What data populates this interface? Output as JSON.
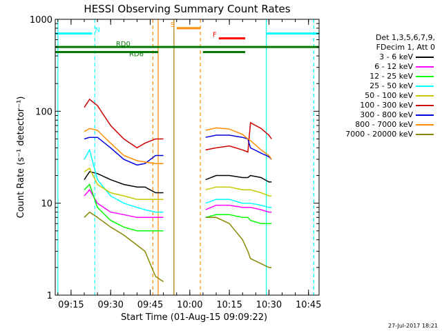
{
  "chart_data": {
    "type": "line",
    "title": "HESSI Observing Summary Count Rates",
    "xlabel": "Start Time (01-Aug-15 09:09:22)",
    "ylabel": "Count Rate (s⁻¹ detector⁻¹)",
    "y_scale": "log",
    "xlim": [
      "09:09",
      "10:49"
    ],
    "ylim": [
      1,
      1000
    ],
    "x_ticks": [
      "09:15",
      "09:30",
      "09:45",
      "10:00",
      "10:15",
      "10:30",
      "10:45"
    ],
    "y_ticks": [
      "1",
      "10",
      "100",
      "1000"
    ],
    "legend_header": [
      "Det 1,3,5,6,7,9,",
      "FDecim 1, Att 0"
    ],
    "legend_position": "right",
    "series": [
      {
        "name": "3 - 6 keV",
        "color": "#000000",
        "values": [
          [
            "09:20",
            18
          ],
          [
            "09:22",
            22
          ],
          [
            "09:25",
            21
          ],
          [
            "09:30",
            18
          ],
          [
            "09:35",
            16
          ],
          [
            "09:40",
            15
          ],
          [
            "09:43",
            15
          ],
          [
            "09:47",
            13
          ],
          [
            "09:50",
            13
          ],
          [
            "10:06",
            18
          ],
          [
            "10:10",
            20
          ],
          [
            "10:15",
            20
          ],
          [
            "10:20",
            19
          ],
          [
            "10:22",
            19
          ],
          [
            "10:23",
            20
          ],
          [
            "10:27",
            19
          ],
          [
            "10:30",
            17
          ],
          [
            "10:31",
            17
          ]
        ]
      },
      {
        "name": "6 - 12 keV",
        "color": "#ff00ff",
        "values": [
          [
            "09:20",
            12
          ],
          [
            "09:22",
            14
          ],
          [
            "09:25",
            10
          ],
          [
            "09:30",
            8
          ],
          [
            "09:35",
            7.5
          ],
          [
            "09:40",
            7
          ],
          [
            "09:43",
            7
          ],
          [
            "09:47",
            7
          ],
          [
            "09:50",
            7
          ],
          [
            "10:06",
            8.5
          ],
          [
            "10:10",
            9.5
          ],
          [
            "10:15",
            9.5
          ],
          [
            "10:20",
            9
          ],
          [
            "10:22",
            9
          ],
          [
            "10:23",
            9
          ],
          [
            "10:27",
            8.5
          ],
          [
            "10:30",
            8
          ],
          [
            "10:31",
            8
          ]
        ]
      },
      {
        "name": "12 - 25 keV",
        "color": "#00ff00",
        "values": [
          [
            "09:20",
            14
          ],
          [
            "09:22",
            16
          ],
          [
            "09:25",
            9
          ],
          [
            "09:30",
            6.5
          ],
          [
            "09:35",
            5.5
          ],
          [
            "09:40",
            5
          ],
          [
            "09:43",
            5
          ],
          [
            "09:47",
            5
          ],
          [
            "09:50",
            5
          ],
          [
            "10:06",
            7
          ],
          [
            "10:10",
            7.5
          ],
          [
            "10:15",
            7.5
          ],
          [
            "10:20",
            7
          ],
          [
            "10:22",
            7
          ],
          [
            "10:23",
            6.5
          ],
          [
            "10:27",
            6
          ],
          [
            "10:30",
            6
          ],
          [
            "10:31",
            6
          ]
        ]
      },
      {
        "name": "25 - 50 keV",
        "color": "#00ffff",
        "values": [
          [
            "09:20",
            30
          ],
          [
            "09:22",
            38
          ],
          [
            "09:25",
            18
          ],
          [
            "09:30",
            12
          ],
          [
            "09:35",
            10
          ],
          [
            "09:40",
            9
          ],
          [
            "09:43",
            8.5
          ],
          [
            "09:47",
            8
          ],
          [
            "09:50",
            8
          ],
          [
            "10:06",
            10
          ],
          [
            "10:10",
            11
          ],
          [
            "10:15",
            11
          ],
          [
            "10:20",
            10
          ],
          [
            "10:22",
            10
          ],
          [
            "10:23",
            10
          ],
          [
            "10:27",
            9.5
          ],
          [
            "10:30",
            9
          ],
          [
            "10:31",
            9
          ]
        ]
      },
      {
        "name": "50 - 100 keV",
        "color": "#c8c800",
        "values": [
          [
            "09:20",
            22
          ],
          [
            "09:22",
            24
          ],
          [
            "09:25",
            16
          ],
          [
            "09:30",
            13
          ],
          [
            "09:35",
            12
          ],
          [
            "09:40",
            11
          ],
          [
            "09:43",
            11
          ],
          [
            "09:47",
            11
          ],
          [
            "09:50",
            11
          ],
          [
            "10:06",
            14
          ],
          [
            "10:10",
            15
          ],
          [
            "10:15",
            15
          ],
          [
            "10:20",
            14
          ],
          [
            "10:22",
            14
          ],
          [
            "10:23",
            14
          ],
          [
            "10:27",
            13
          ],
          [
            "10:30",
            12
          ],
          [
            "10:31",
            12
          ]
        ]
      },
      {
        "name": "100 - 300 keV",
        "color": "#cc0000",
        "values": [
          [
            "09:20",
            110
          ],
          [
            "09:22",
            135
          ],
          [
            "09:25",
            115
          ],
          [
            "09:30",
            70
          ],
          [
            "09:35",
            50
          ],
          [
            "09:40",
            40
          ],
          [
            "09:43",
            45
          ],
          [
            "09:47",
            50
          ],
          [
            "09:50",
            50
          ],
          [
            "10:06",
            38
          ],
          [
            "10:10",
            40
          ],
          [
            "10:15",
            42
          ],
          [
            "10:20",
            38
          ],
          [
            "10:22",
            36
          ],
          [
            "10:23",
            75
          ],
          [
            "10:27",
            65
          ],
          [
            "10:30",
            55
          ],
          [
            "10:31",
            50
          ]
        ]
      },
      {
        "name": "300 - 800 keV",
        "color": "#0000dd",
        "values": [
          [
            "09:20",
            50
          ],
          [
            "09:22",
            52
          ],
          [
            "09:25",
            52
          ],
          [
            "09:30",
            40
          ],
          [
            "09:35",
            30
          ],
          [
            "09:40",
            26
          ],
          [
            "09:43",
            27
          ],
          [
            "09:47",
            33
          ],
          [
            "09:50",
            33
          ],
          [
            "10:06",
            52
          ],
          [
            "10:10",
            55
          ],
          [
            "10:15",
            55
          ],
          [
            "10:20",
            52
          ],
          [
            "10:22",
            50
          ],
          [
            "10:23",
            40
          ],
          [
            "10:27",
            35
          ],
          [
            "10:30",
            32
          ],
          [
            "10:31",
            30
          ]
        ]
      },
      {
        "name": "800 - 7000 keV",
        "color": "#ff8c00",
        "values": [
          [
            "09:20",
            60
          ],
          [
            "09:22",
            65
          ],
          [
            "09:25",
            62
          ],
          [
            "09:30",
            45
          ],
          [
            "09:35",
            33
          ],
          [
            "09:40",
            29
          ],
          [
            "09:43",
            28
          ],
          [
            "09:47",
            27
          ],
          [
            "09:50",
            27
          ],
          [
            "10:06",
            62
          ],
          [
            "10:10",
            66
          ],
          [
            "10:15",
            64
          ],
          [
            "10:20",
            56
          ],
          [
            "10:22",
            50
          ],
          [
            "10:23",
            48
          ],
          [
            "10:27",
            38
          ],
          [
            "10:30",
            33
          ],
          [
            "10:31",
            30
          ]
        ]
      },
      {
        "name": "7000 - 20000 keV",
        "color": "#888800",
        "values": [
          [
            "09:20",
            7
          ],
          [
            "09:22",
            8
          ],
          [
            "09:25",
            7
          ],
          [
            "09:30",
            5.5
          ],
          [
            "09:35",
            4.5
          ],
          [
            "09:40",
            3.5
          ],
          [
            "09:43",
            3
          ],
          [
            "09:47",
            1.6
          ],
          [
            "09:50",
            1.4
          ],
          [
            "10:06",
            7
          ],
          [
            "10:10",
            7
          ],
          [
            "10:15",
            6
          ],
          [
            "10:20",
            4
          ],
          [
            "10:22",
            3
          ],
          [
            "10:23",
            2.5
          ],
          [
            "10:27",
            2.2
          ],
          [
            "10:30",
            2
          ],
          [
            "10:31",
            2
          ]
        ]
      }
    ],
    "flag_bars": [
      {
        "label": "N",
        "color": "#00ffff",
        "y": 700,
        "segments": [
          [
            "09:09",
            "09:23"
          ],
          [
            "10:29",
            "10:49"
          ]
        ]
      },
      {
        "label": "S",
        "color": "#ff8c00",
        "y": 800,
        "segments": [
          [
            "09:55",
            "10:04"
          ]
        ]
      },
      {
        "label": "F",
        "color": "#ff0000",
        "y": 620,
        "segments": [
          [
            "10:11",
            "10:21"
          ]
        ]
      },
      {
        "label": "RD0",
        "color": "#007700",
        "y": 500,
        "segments": [
          [
            "09:09",
            "10:49"
          ]
        ]
      },
      {
        "label": "RD6",
        "color": "#007700",
        "y": 440,
        "segments": [
          [
            "09:09",
            "09:48"
          ],
          [
            "10:05",
            "10:21"
          ]
        ]
      }
    ],
    "vertical_markers": [
      {
        "time": "09:10",
        "color": "#00ffff",
        "style": "solid"
      },
      {
        "time": "09:24",
        "color": "#00ffff",
        "style": "dashed"
      },
      {
        "time": "09:46",
        "color": "#ff8c00",
        "style": "dashed"
      },
      {
        "time": "09:48",
        "color": "#ff8c00",
        "style": "solid"
      },
      {
        "time": "09:54",
        "color": "#aa7700",
        "style": "solid"
      },
      {
        "time": "10:04",
        "color": "#ff8c00",
        "style": "dashed"
      },
      {
        "time": "10:29",
        "color": "#00ffff",
        "style": "solid"
      },
      {
        "time": "10:47",
        "color": "#00ffff",
        "style": "dashed"
      }
    ],
    "timestamp": "27-Jul-2017 18:21"
  }
}
